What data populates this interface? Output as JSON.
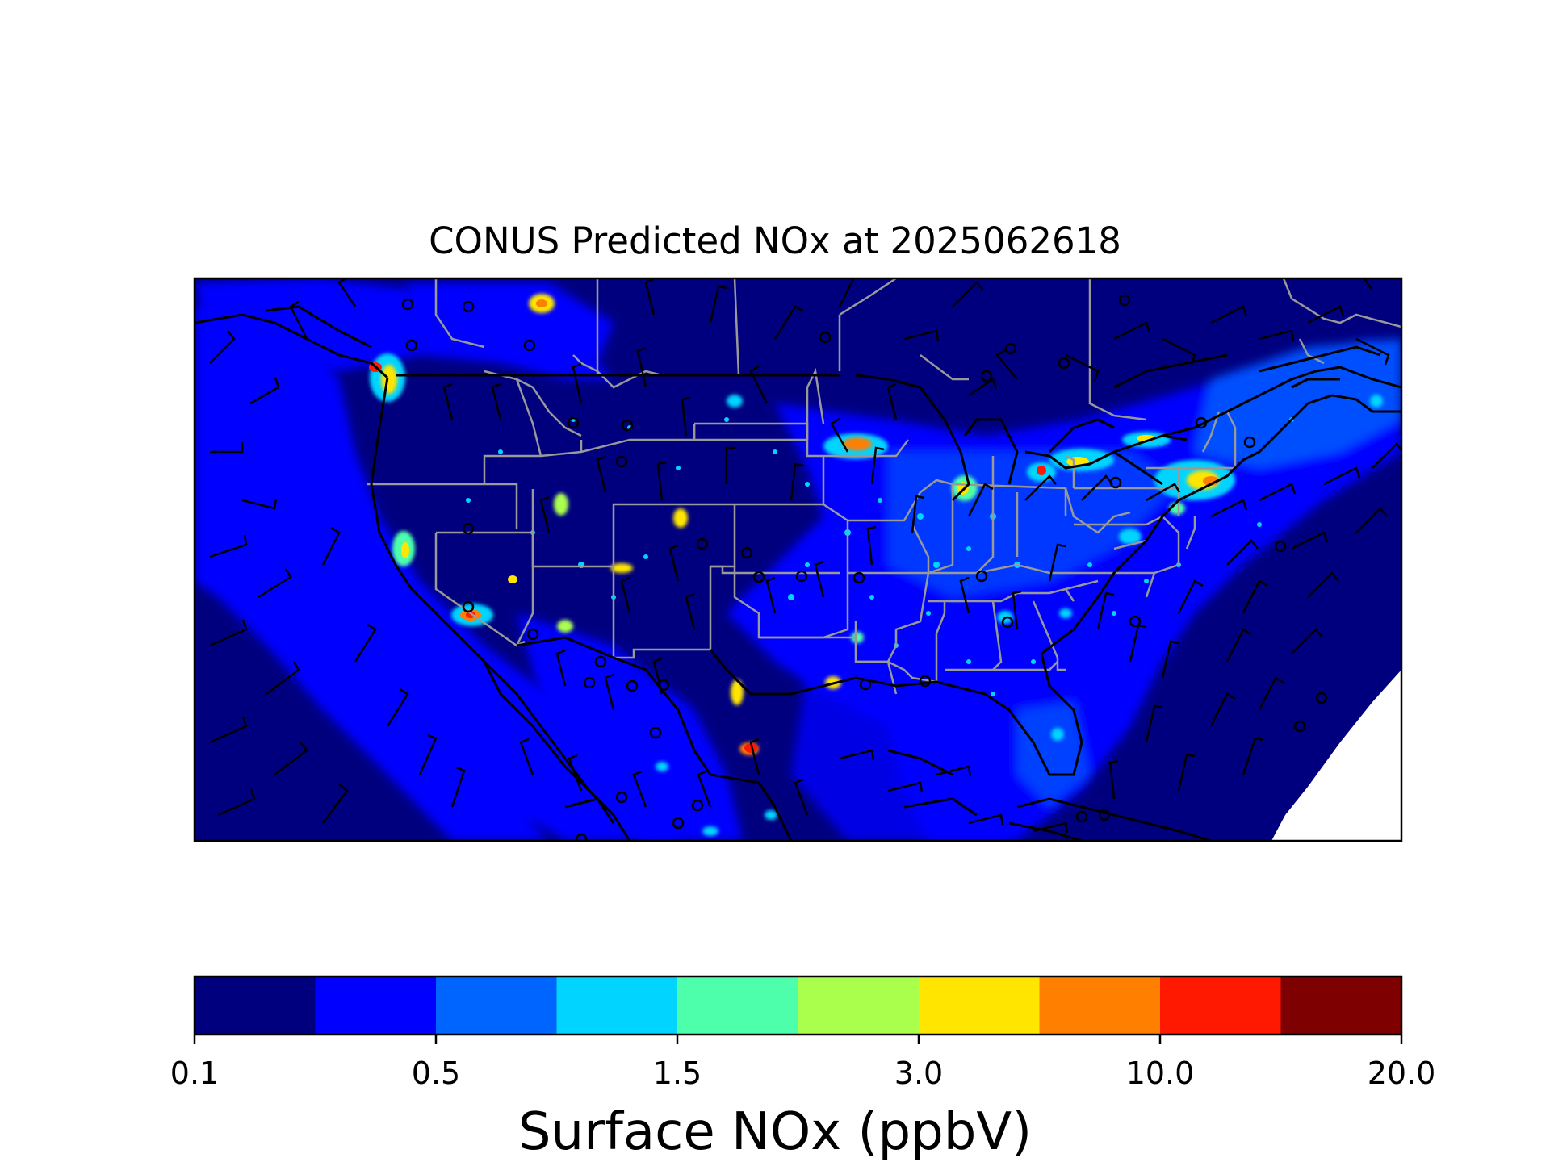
{
  "map": {
    "title": "CONUS Predicted NOx at 2025062618",
    "colorbar_label": "Surface NOx (ppbV)",
    "tick_labels": [
      "0.1",
      "0.5",
      "1.5",
      "3.0",
      "10.0",
      "20.0"
    ],
    "colorbar_colors": [
      "#00007f",
      "#0000ff",
      "#0064ff",
      "#00d4ff",
      "#4dffaa",
      "#aaff4d",
      "#ffe500",
      "#ff7f00",
      "#ff1900",
      "#7f0000"
    ],
    "ocean_color": "#00007f",
    "land_background_color": "#000080",
    "state_border_color": "#999999",
    "coastline_color": "#000000"
  }
}
